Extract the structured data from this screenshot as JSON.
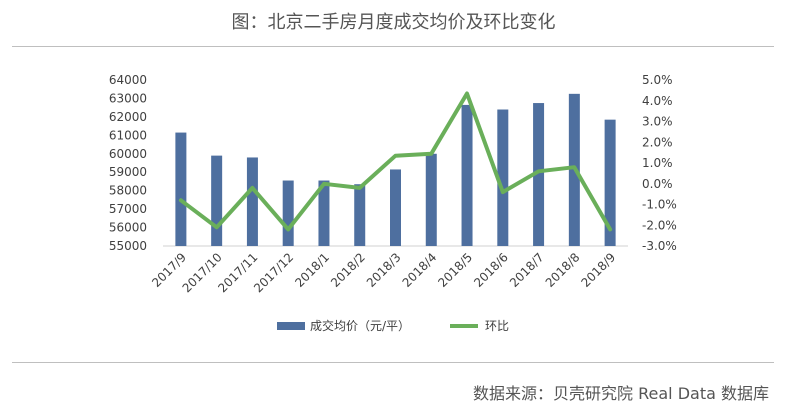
{
  "header": {
    "title": "图：北京二手房月度成交均价及环比变化"
  },
  "footer": {
    "source": "数据来源：贝壳研究院 Real Data 数据库"
  },
  "colors": {
    "bar": "#4e6f9f",
    "line": "#6aaf5a"
  },
  "chart_data": {
    "type": "bar",
    "title": "图：北京二手房月度成交均价及环比变化",
    "categories": [
      "2017/9",
      "2017/10",
      "2017/11",
      "2017/12",
      "2018/1",
      "2018/2",
      "2018/3",
      "2018/4",
      "2018/5",
      "2018/6",
      "2018/7",
      "2018/8",
      "2018/9"
    ],
    "series": [
      {
        "name": "成交均价（元/平）",
        "type": "bar",
        "axis": "left",
        "values": [
          61150,
          59900,
          59800,
          58550,
          58550,
          58350,
          59150,
          60000,
          62650,
          62400,
          62750,
          63250,
          61850
        ]
      },
      {
        "name": "环比",
        "type": "line",
        "axis": "right",
        "values": [
          -0.8,
          -2.1,
          -0.2,
          -2.2,
          0.0,
          -0.2,
          1.35,
          1.45,
          4.35,
          -0.4,
          0.6,
          0.8,
          -2.2
        ]
      }
    ],
    "ylim": [
      55000,
      64000
    ],
    "y_ticks": [
      "55000",
      "56000",
      "57000",
      "58000",
      "59000",
      "60000",
      "61000",
      "62000",
      "63000",
      "64000"
    ],
    "y2lim": [
      -3.0,
      5.0
    ],
    "y2_ticks": [
      "-3.0%",
      "-2.0%",
      "-1.0%",
      "0.0%",
      "1.0%",
      "2.0%",
      "3.0%",
      "4.0%",
      "5.0%"
    ],
    "legend_position": "bottom",
    "grid": false
  }
}
